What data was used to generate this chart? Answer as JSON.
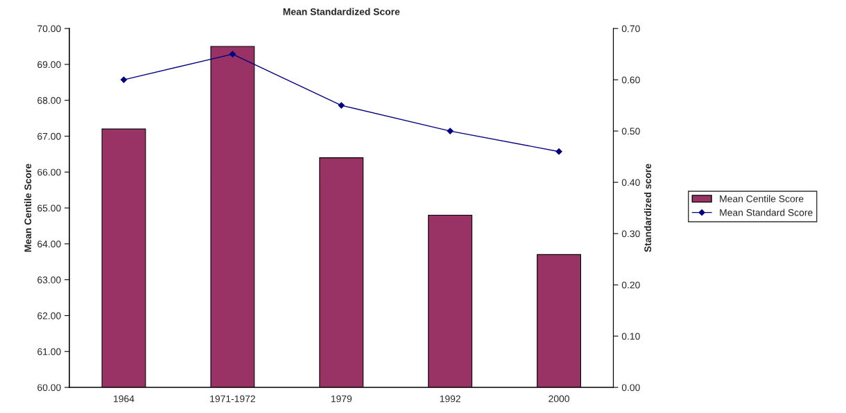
{
  "chart_data": {
    "type": "bar",
    "title": "Mean Standardized Score",
    "ylabel": "Mean Centile Score",
    "y2label": "Standardized score",
    "categories": [
      "1964",
      "1971-1972",
      "1979",
      "1992",
      "2000"
    ],
    "series": [
      {
        "name": "Mean Centile Score",
        "color": "#993366",
        "values": [
          67.2,
          69.5,
          66.4,
          64.8,
          63.7
        ]
      },
      {
        "name": "Mean Standard Score",
        "type": "line",
        "axis": "y2",
        "color": "#000080",
        "marker": "diamond",
        "values": [
          0.6,
          0.65,
          0.55,
          0.5,
          0.46
        ]
      }
    ],
    "ylim": [
      60,
      70
    ],
    "yticks": [
      {
        "value": 60,
        "label": "60.00"
      },
      {
        "value": 61,
        "label": "61.00"
      },
      {
        "value": 62,
        "label": "62.00"
      },
      {
        "value": 63,
        "label": "63.00"
      },
      {
        "value": 64,
        "label": "64.00"
      },
      {
        "value": 65,
        "label": "65.00"
      },
      {
        "value": 66,
        "label": "66.00"
      },
      {
        "value": 67,
        "label": "67.00"
      },
      {
        "value": 68,
        "label": "68.00"
      },
      {
        "value": 69,
        "label": "69.00"
      },
      {
        "value": 70,
        "label": "70.00"
      }
    ],
    "y2lim": [
      0,
      0.7
    ],
    "y2ticks": [
      {
        "value": 0,
        "label": "0.00"
      },
      {
        "value": 0.1,
        "label": "0.10"
      },
      {
        "value": 0.2,
        "label": "0.20"
      },
      {
        "value": 0.3,
        "label": "0.30"
      },
      {
        "value": 0.4,
        "label": "0.40"
      },
      {
        "value": 0.5,
        "label": "0.50"
      },
      {
        "value": 0.6,
        "label": "0.60"
      },
      {
        "value": 0.7,
        "label": "0.70"
      }
    ],
    "grid": false,
    "legend": "right"
  }
}
